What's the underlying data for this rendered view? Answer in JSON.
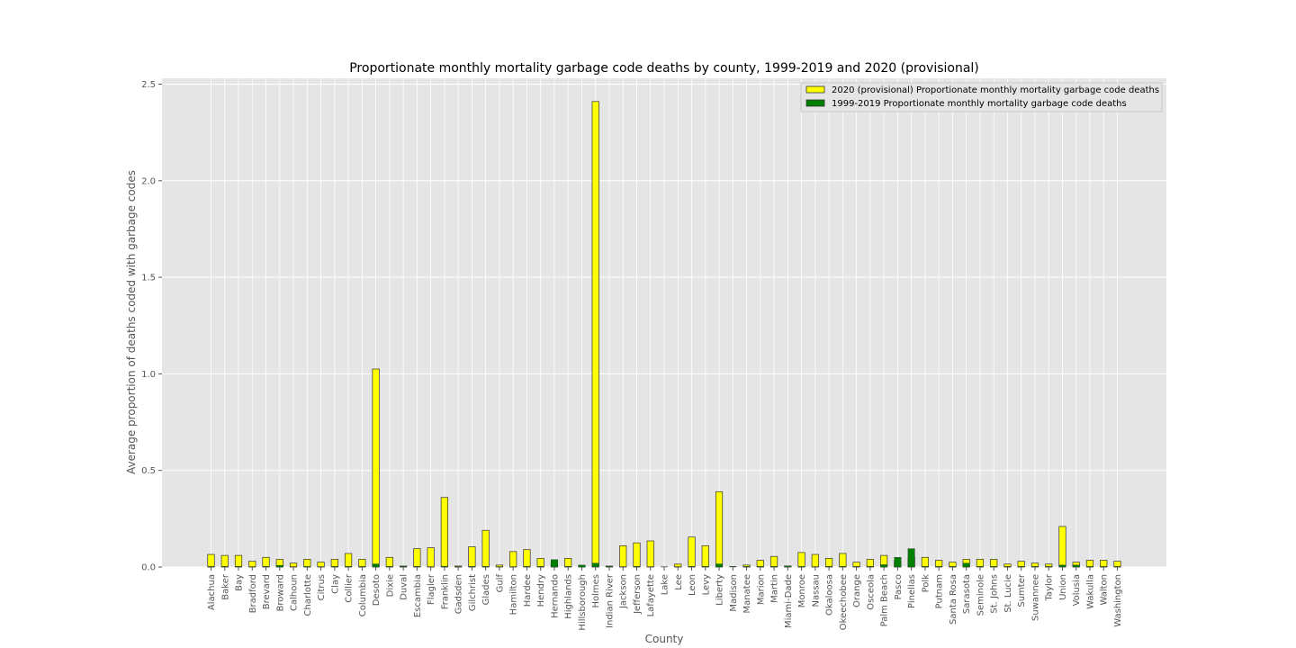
{
  "chart_data": {
    "type": "bar",
    "title": "Proportionate monthly mortality garbage code deaths by county, 1999-2019 and 2020 (provisional)",
    "xlabel": "County",
    "ylabel": "Average proportion of deaths coded with garbage codes",
    "ylim": [
      0,
      2.5
    ],
    "yticks": [
      "0.0",
      "0.5",
      "1.0",
      "1.5",
      "2.0",
      "2.5"
    ],
    "grid": true,
    "legend_position": "top-right",
    "categories": [
      "Alachua",
      "Baker",
      "Bay",
      "Bradford",
      "Brevard",
      "Broward",
      "Calhoun",
      "Charlotte",
      "Citrus",
      "Clay",
      "Collier",
      "Columbia",
      "Desoto",
      "Dixie",
      "Duval",
      "Escambia",
      "Flagler",
      "Franklin",
      "Gadsden",
      "Gilchrist",
      "Glades",
      "Gulf",
      "Hamilton",
      "Hardee",
      "Hendry",
      "Hernando",
      "Highlands",
      "Hillsborough",
      "Holmes",
      "Indian River",
      "Jackson",
      "Jefferson",
      "Lafayette",
      "Lake",
      "Lee",
      "Leon",
      "Levy",
      "Liberty",
      "Madison",
      "Manatee",
      "Marion",
      "Martin",
      "Miami-Dade",
      "Monroe",
      "Nassau",
      "Okaloosa",
      "Okeechobee",
      "Orange",
      "Osceola",
      "Palm Beach",
      "Pasco",
      "Pinellas",
      "Polk",
      "Putnam",
      "Santa Rosa",
      "Sarasota",
      "Seminole",
      "St. Johns",
      "St. Lucie",
      "Sumter",
      "Suwannee",
      "Taylor",
      "Union",
      "Volusia",
      "Wakulla",
      "Walton",
      "Washington"
    ],
    "series": [
      {
        "name": "2020 (provisional) Proportionate monthly mortality garbage code deaths",
        "color": "#ffff00",
        "values": [
          0.065,
          0.06,
          0.06,
          0.03,
          0.05,
          0.04,
          0.02,
          0.04,
          0.025,
          0.04,
          0.07,
          0.04,
          1.025,
          0.05,
          0.005,
          0.095,
          0.1,
          0.36,
          0.005,
          0.105,
          0.19,
          0.01,
          0.08,
          0.09,
          0.045,
          0.02,
          0.045,
          0.005,
          2.41,
          0.005,
          0.11,
          0.125,
          0.135,
          0.0,
          0.015,
          0.155,
          0.11,
          0.39,
          0.0,
          0.01,
          0.035,
          0.055,
          0.005,
          0.075,
          0.065,
          0.045,
          0.07,
          0.025,
          0.04,
          0.06,
          0.03,
          0.05,
          0.05,
          0.035,
          0.025,
          0.04,
          0.04,
          0.04,
          0.015,
          0.03,
          0.02,
          0.015,
          0.21,
          0.025,
          0.035,
          0.035,
          0.03
        ]
      },
      {
        "name": "1999-2019 Proportionate monthly mortality garbage code deaths",
        "color": "#008000",
        "values": [
          0.003,
          0.003,
          0.003,
          0.002,
          0.003,
          0.008,
          0.002,
          0.003,
          0.002,
          0.003,
          0.003,
          0.003,
          0.016,
          0.003,
          0.004,
          0.003,
          0.002,
          0.004,
          0.002,
          0.003,
          0.003,
          0.002,
          0.002,
          0.003,
          0.003,
          0.038,
          0.003,
          0.01,
          0.02,
          0.004,
          0.002,
          0.003,
          0.002,
          0.001,
          0.002,
          0.003,
          0.003,
          0.016,
          0.003,
          0.003,
          0.003,
          0.003,
          0.006,
          0.003,
          0.002,
          0.003,
          0.003,
          0.003,
          0.003,
          0.012,
          0.05,
          0.095,
          0.003,
          0.003,
          0.003,
          0.02,
          0.003,
          0.003,
          0.003,
          0.003,
          0.003,
          0.003,
          0.01,
          0.01,
          0.003,
          0.003,
          0.003
        ]
      }
    ]
  }
}
